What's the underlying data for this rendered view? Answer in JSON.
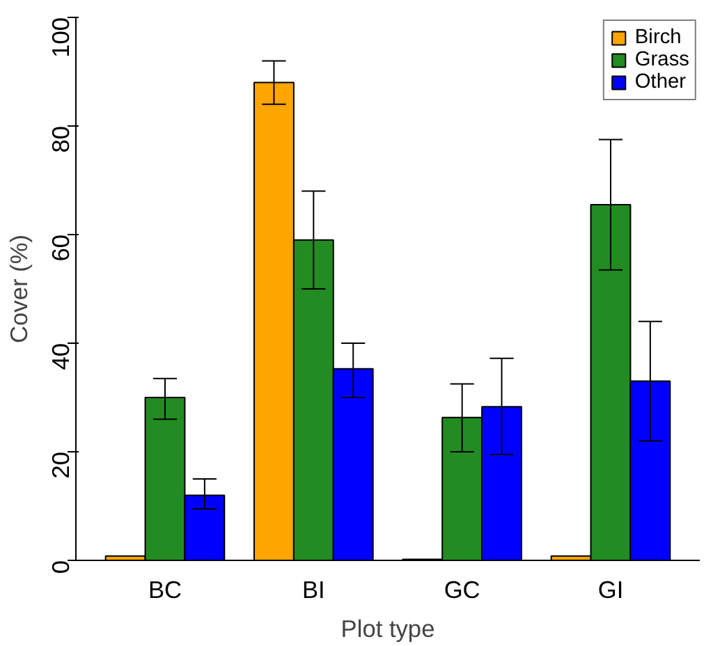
{
  "chart_data": {
    "type": "bar",
    "xlabel": "Plot type",
    "ylabel": "Cover (%)",
    "categories": [
      "BC",
      "BI",
      "GC",
      "GI"
    ],
    "series": [
      {
        "name": "Birch",
        "color": "#ffa500",
        "values": [
          0.8,
          88,
          0.2,
          0.8
        ],
        "errors": [
          null,
          [
            84,
            92
          ],
          null,
          null
        ]
      },
      {
        "name": "Grass",
        "color": "#228b22",
        "values": [
          30,
          59,
          26.3,
          65.5
        ],
        "errors": [
          [
            26,
            33.5
          ],
          [
            50,
            68
          ],
          [
            20,
            32.5
          ],
          [
            53.5,
            77.5
          ]
        ]
      },
      {
        "name": "Other",
        "color": "#0000ff",
        "values": [
          12,
          35.3,
          28.3,
          33
        ],
        "errors": [
          [
            9.5,
            15
          ],
          [
            30,
            40
          ],
          [
            19.5,
            37.2
          ],
          [
            22,
            44
          ]
        ]
      }
    ],
    "ylim": [
      0,
      100
    ],
    "yticks": [
      0,
      20,
      40,
      60,
      80,
      100
    ],
    "grid": false,
    "legend": "top right"
  }
}
